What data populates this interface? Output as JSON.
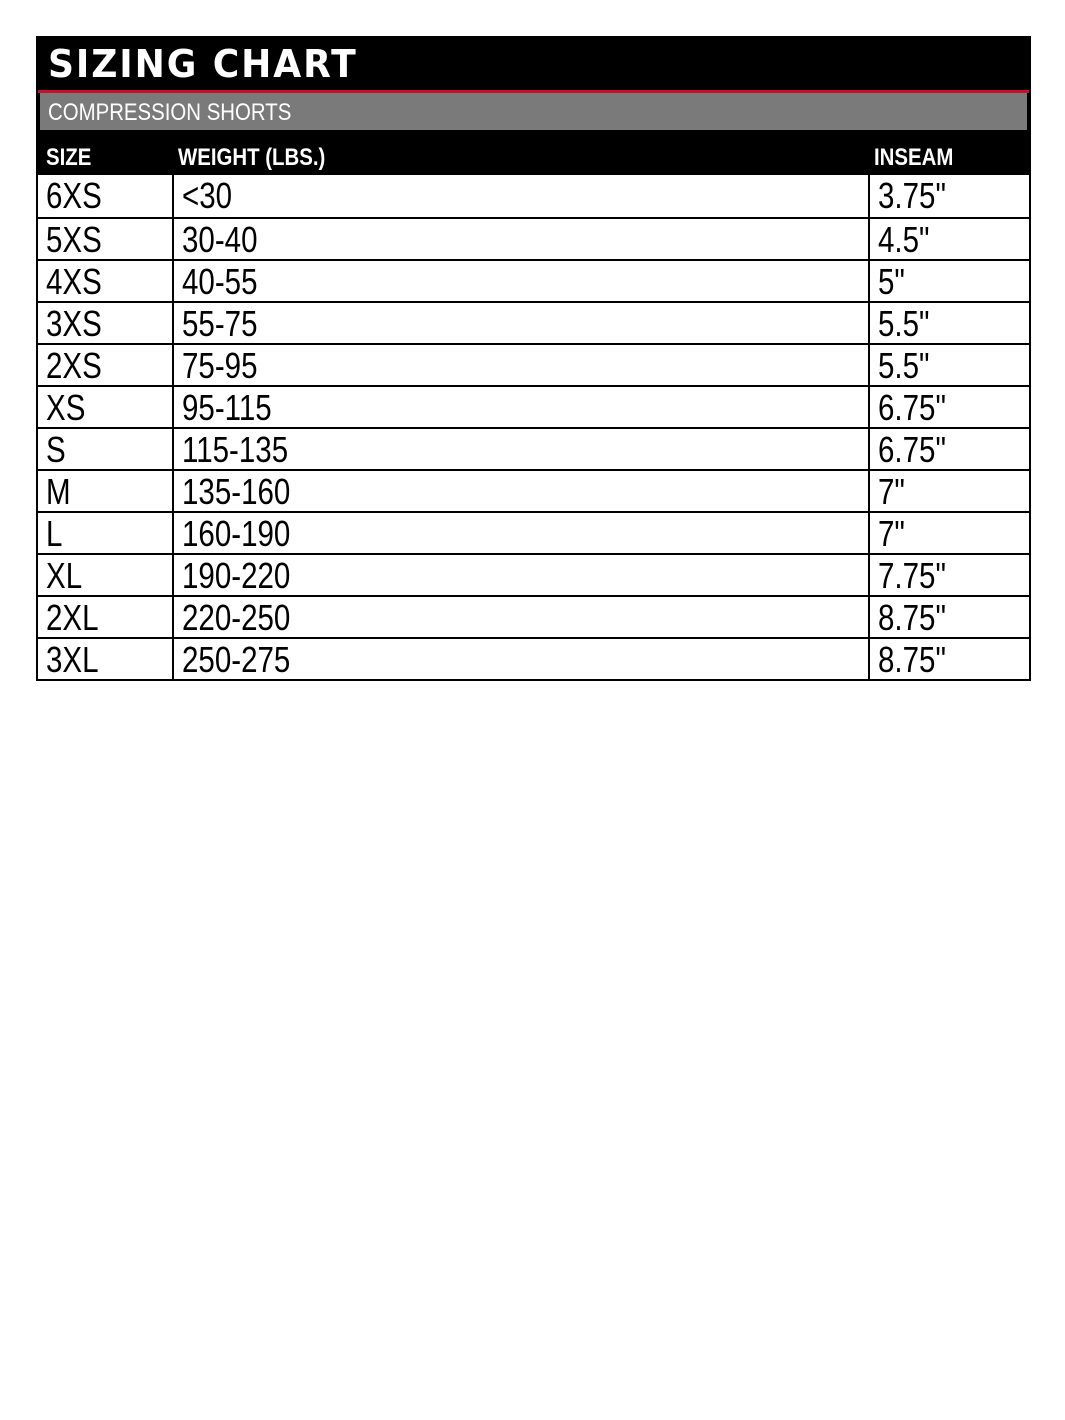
{
  "title": "SIZING CHART",
  "subtitle": "COMPRESSION SHORTS",
  "colors": {
    "accent": "#c8102e",
    "header": "#000000",
    "subheader": "#7a7a7a"
  },
  "columns": [
    "SIZE",
    "WEIGHT (LBS.)",
    "INSEAM"
  ],
  "rows": [
    [
      "6XS",
      "<30",
      "3.75\""
    ],
    [
      "5XS",
      "30-40",
      "4.5\""
    ],
    [
      "4XS",
      "40-55",
      "5\""
    ],
    [
      "3XS",
      "55-75",
      "5.5\""
    ],
    [
      "2XS",
      "75-95",
      "5.5\""
    ],
    [
      "XS",
      "95-115",
      "6.75\""
    ],
    [
      "S",
      "115-135",
      "6.75\""
    ],
    [
      "M",
      "135-160",
      "7\""
    ],
    [
      "L",
      "160-190",
      "7\""
    ],
    [
      "XL",
      "190-220",
      "7.75\""
    ],
    [
      "2XL",
      "220-250",
      "8.75\""
    ],
    [
      "3XL",
      "250-275",
      "8.75\""
    ]
  ]
}
